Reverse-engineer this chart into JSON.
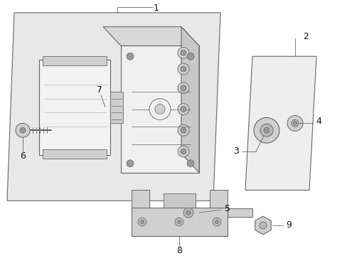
{
  "bg_color": "#ffffff",
  "line_color": "#666666",
  "label_color": "#111111",
  "font_size": 9,
  "panel_fill": "#e8e8e8",
  "ecu_fill": "#f2f2f2",
  "hcu_fill": "#f0f0f0",
  "hcu_top_fill": "#d8d8d8",
  "hcu_right_fill": "#c8c8c8",
  "plate_fill": "#eeeeee",
  "part_fill": "#d0d0d0",
  "dark_fill": "#999999"
}
